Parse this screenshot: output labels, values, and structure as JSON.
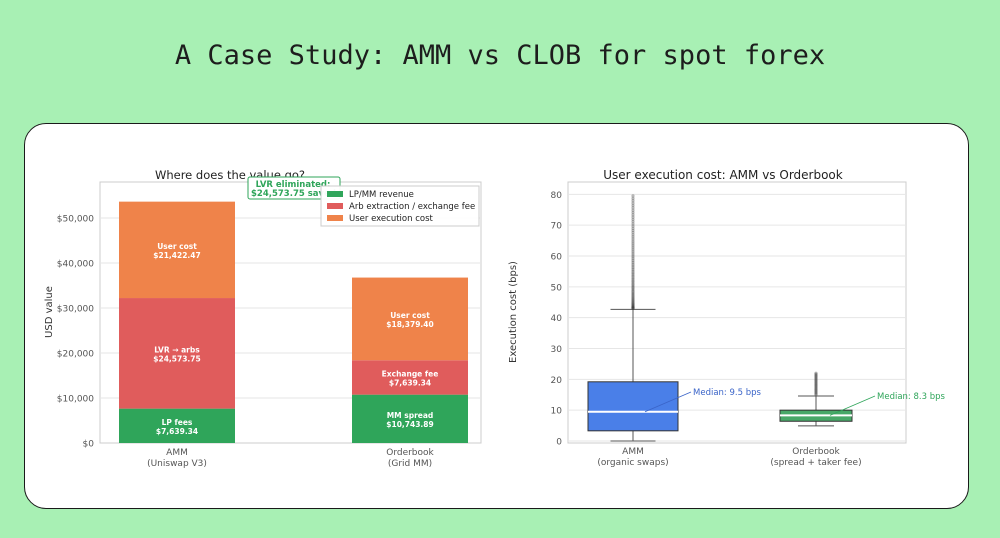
{
  "page": {
    "title": "A Case Study: AMM vs CLOB for spot forex"
  },
  "chart_data": [
    {
      "type": "bar",
      "stacked": true,
      "title": "Where does the value go?",
      "ylabel": "USD value",
      "ylim": [
        0,
        58000
      ],
      "yticks": [
        {
          "value": 0,
          "label": "$0"
        },
        {
          "value": 10000,
          "label": "$10,000"
        },
        {
          "value": 20000,
          "label": "$20,000"
        },
        {
          "value": 30000,
          "label": "$30,000"
        },
        {
          "value": 40000,
          "label": "$40,000"
        },
        {
          "value": 50000,
          "label": "$50,000"
        }
      ],
      "categories": [
        {
          "line1": "AMM",
          "line2": "(Uniswap V3)"
        },
        {
          "line1": "Orderbook",
          "line2": "(Grid MM)"
        }
      ],
      "legend": {
        "placement": "top-right",
        "entries": [
          {
            "label": "LP/MM revenue",
            "color": "#2fa55a"
          },
          {
            "label": "Arb extraction / exchange fee",
            "color": "#e05c5c"
          },
          {
            "label": "User execution cost",
            "color": "#ef834a"
          }
        ]
      },
      "series": [
        {
          "color": "#2fa55a",
          "values": [
            7639.34,
            10743.89
          ],
          "labels": [
            {
              "name": "LP fees",
              "value": "$7,639.34"
            },
            {
              "name": "MM spread",
              "value": "$10,743.89"
            }
          ]
        },
        {
          "color": "#e05c5c",
          "values": [
            24573.75,
            7639.34
          ],
          "labels": [
            {
              "name": "LVR → arbs",
              "value": "$24,573.75"
            },
            {
              "name": "Exchange fee",
              "value": "$7,639.34"
            }
          ]
        },
        {
          "color": "#ef834a",
          "values": [
            21422.47,
            18379.4
          ],
          "labels": [
            {
              "name": "User cost",
              "value": "$21,422.47"
            },
            {
              "name": "User cost",
              "value": "$18,379.40"
            }
          ]
        }
      ],
      "annotation": {
        "line1": "LVR eliminated:",
        "line2": "$24,573.75 saved",
        "color": "#2fa55a"
      }
    },
    {
      "type": "box",
      "title": "User execution cost: AMM vs Orderbook",
      "ylabel": "Execution cost (bps)",
      "ylim": [
        0,
        84
      ],
      "yticks": [
        0,
        10,
        20,
        30,
        40,
        50,
        60,
        70,
        80
      ],
      "categories": [
        {
          "line1": "AMM",
          "line2": "(organic swaps)"
        },
        {
          "line1": "Orderbook",
          "line2": "(spread + taker fee)"
        }
      ],
      "boxes": [
        {
          "color": "#4a7fe8",
          "annotation_color": "#3a64c8",
          "whisker_low": 0,
          "q1": 3.3,
          "median": 9.5,
          "q3": 19.2,
          "whisker_high": 42.7,
          "outlier_range": [
            43,
            79.5
          ],
          "median_label": "Median: 9.5 bps"
        },
        {
          "color": "#48a868",
          "annotation_color": "#2fa55a",
          "whisker_low": 4.9,
          "q1": 6.4,
          "median": 8.3,
          "q3": 10.0,
          "whisker_high": 14.6,
          "outlier_range": [
            15,
            22
          ],
          "median_label": "Median: 8.3 bps"
        }
      ]
    }
  ]
}
